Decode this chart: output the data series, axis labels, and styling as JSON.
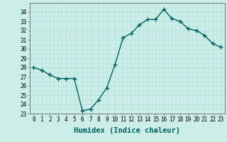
{
  "x": [
    0,
    1,
    2,
    3,
    4,
    5,
    6,
    7,
    8,
    9,
    10,
    11,
    12,
    13,
    14,
    15,
    16,
    17,
    18,
    19,
    20,
    21,
    22,
    23
  ],
  "y": [
    28.0,
    27.7,
    27.2,
    26.8,
    26.8,
    26.8,
    23.3,
    23.5,
    24.5,
    25.8,
    28.3,
    31.2,
    31.7,
    32.6,
    33.2,
    33.2,
    34.3,
    33.3,
    33.0,
    32.2,
    32.0,
    31.5,
    30.6,
    30.2
  ],
  "line_color": "#006060",
  "marker": "+",
  "markersize": 4,
  "linewidth": 1.0,
  "xlabel": "Humidex (Indice chaleur)",
  "xlabel_fontsize": 7.5,
  "ylim": [
    23,
    35
  ],
  "xlim": [
    -0.5,
    23.5
  ],
  "yticks": [
    23,
    24,
    25,
    26,
    27,
    28,
    29,
    30,
    31,
    32,
    33,
    34
  ],
  "xticks": [
    0,
    1,
    2,
    3,
    4,
    5,
    6,
    7,
    8,
    9,
    10,
    11,
    12,
    13,
    14,
    15,
    16,
    17,
    18,
    19,
    20,
    21,
    22,
    23
  ],
  "bg_color": "#cceee8",
  "grid_major_color": "#aadddd",
  "grid_minor_color": "#bbdddd",
  "tick_fontsize": 5.5,
  "markeredgewidth": 1.0
}
